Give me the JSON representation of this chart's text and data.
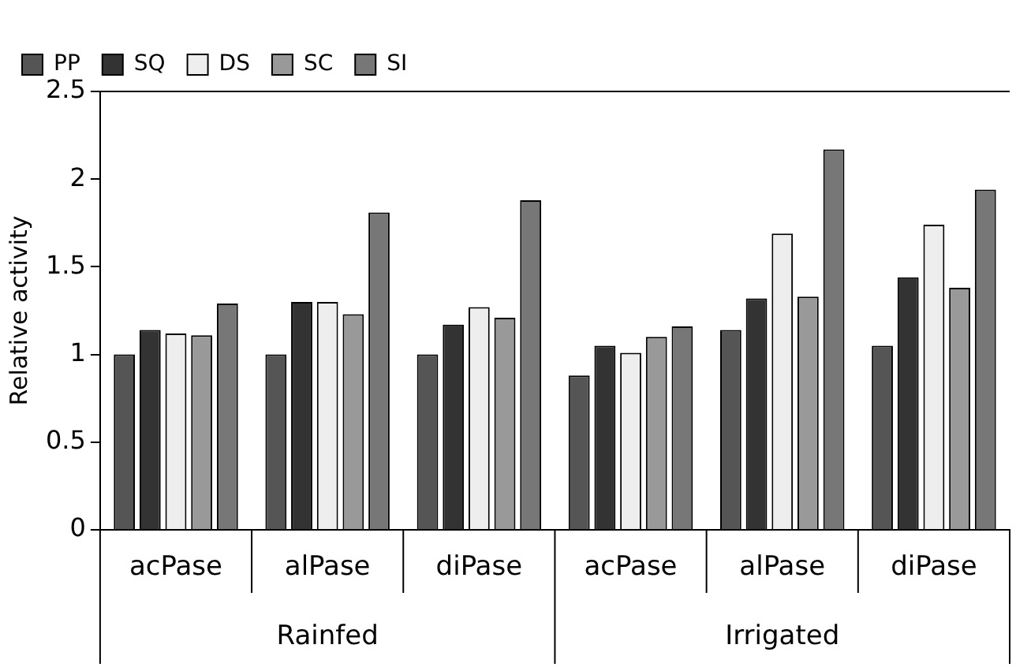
{
  "chart_data": {
    "type": "bar",
    "ylabel": "Relative activity",
    "categories": [
      "acPase",
      "alPase",
      "diPase",
      "acPase",
      "alPase",
      "diPase"
    ],
    "annotations": [
      "Rainfed",
      "Irrigated"
    ],
    "series": [
      {
        "name": "PP",
        "color": "#555555",
        "values": [
          1.0,
          1.0,
          1.0,
          0.88,
          1.14,
          1.05
        ]
      },
      {
        "name": "SQ",
        "color": "#333333",
        "values": [
          1.14,
          1.3,
          1.17,
          1.05,
          1.32,
          1.44
        ]
      },
      {
        "name": "DS",
        "color": "#eeeeee",
        "values": [
          1.12,
          1.3,
          1.27,
          1.01,
          1.69,
          1.74
        ]
      },
      {
        "name": "SC",
        "color": "#999999",
        "values": [
          1.11,
          1.23,
          1.21,
          1.1,
          1.33,
          1.38
        ]
      },
      {
        "name": "SI",
        "color": "#777777",
        "values": [
          1.29,
          1.81,
          1.88,
          1.16,
          2.17,
          1.94
        ]
      }
    ],
    "ylim": [
      0,
      2.5
    ],
    "yticks": [
      0,
      0.5,
      1,
      1.5,
      2,
      2.5
    ],
    "grid": false,
    "legend": "top left"
  }
}
